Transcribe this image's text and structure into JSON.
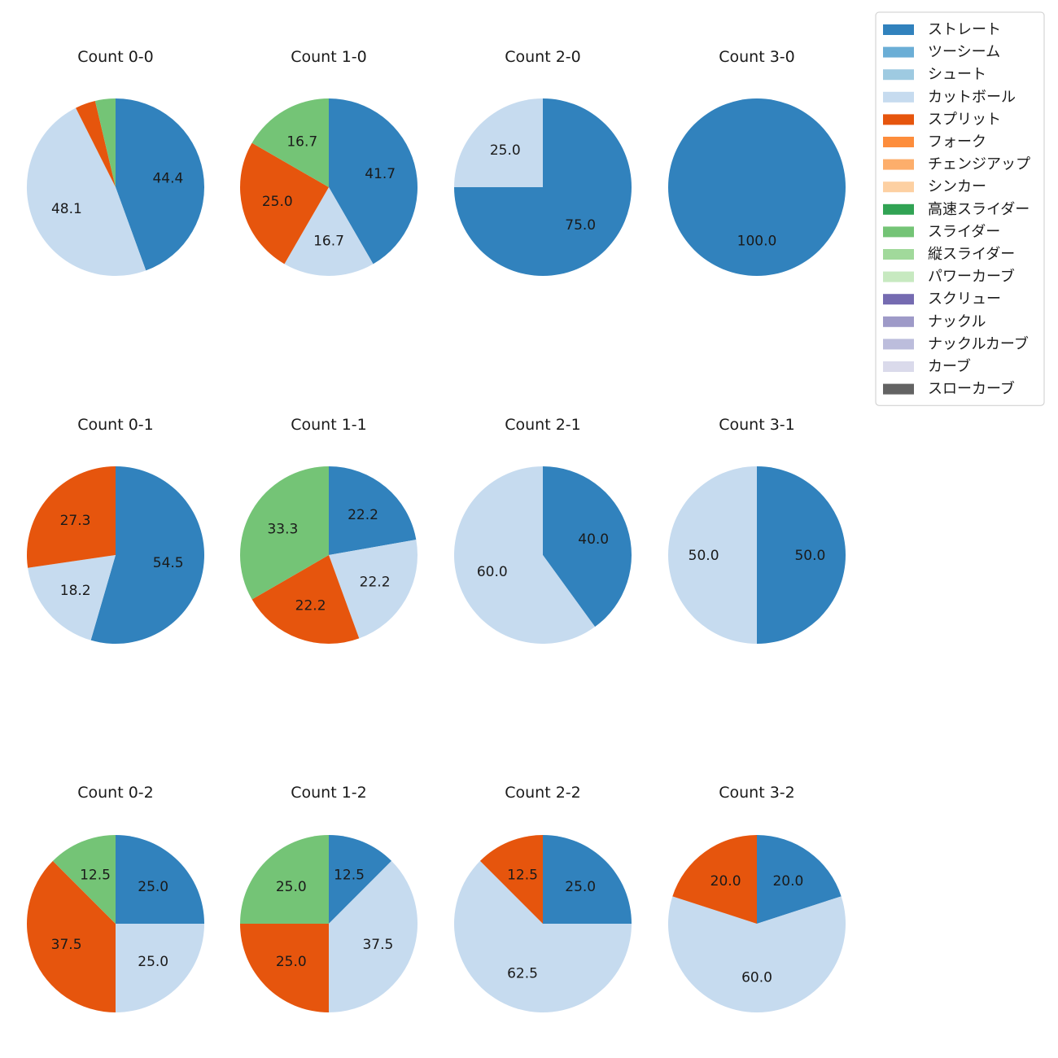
{
  "chart_data": {
    "type": "pie",
    "legend": {
      "placement": "top-right",
      "entries": [
        {
          "name": "ストレート",
          "color": "#3182bd"
        },
        {
          "name": "ツーシーム",
          "color": "#6baed6"
        },
        {
          "name": "シュート",
          "color": "#9ecae1"
        },
        {
          "name": "カットボール",
          "color": "#c6dbef"
        },
        {
          "name": "スプリット",
          "color": "#e6550d"
        },
        {
          "name": "フォーク",
          "color": "#fd8d3c"
        },
        {
          "name": "チェンジアップ",
          "color": "#fdae6b"
        },
        {
          "name": "シンカー",
          "color": "#fdd0a2"
        },
        {
          "name": "高速スライダー",
          "color": "#31a354"
        },
        {
          "name": "スライダー",
          "color": "#74c476"
        },
        {
          "name": "縦スライダー",
          "color": "#a1d99b"
        },
        {
          "name": "パワーカーブ",
          "color": "#c7e9c0"
        },
        {
          "name": "スクリュー",
          "color": "#756bb1"
        },
        {
          "name": "ナックル",
          "color": "#9e9ac8"
        },
        {
          "name": "ナックルカーブ",
          "color": "#bcbddc"
        },
        {
          "name": "カーブ",
          "color": "#dadaeb"
        },
        {
          "name": "スローカーブ",
          "color": "#636363"
        }
      ]
    },
    "pies": [
      {
        "title": "Count 0-0",
        "slices": [
          {
            "pitch": "ストレート",
            "value": 44.4,
            "label": "44.4"
          },
          {
            "pitch": "カットボール",
            "value": 48.1,
            "label": "48.1"
          },
          {
            "pitch": "スプリット",
            "value": 3.7,
            "label": ""
          },
          {
            "pitch": "スライダー",
            "value": 3.7,
            "label": ""
          }
        ]
      },
      {
        "title": "Count 1-0",
        "slices": [
          {
            "pitch": "ストレート",
            "value": 41.7,
            "label": "41.7"
          },
          {
            "pitch": "カットボール",
            "value": 16.7,
            "label": "16.7"
          },
          {
            "pitch": "スプリット",
            "value": 25.0,
            "label": "25.0"
          },
          {
            "pitch": "スライダー",
            "value": 16.7,
            "label": "16.7"
          }
        ]
      },
      {
        "title": "Count 2-0",
        "slices": [
          {
            "pitch": "ストレート",
            "value": 75.0,
            "label": "75.0"
          },
          {
            "pitch": "カットボール",
            "value": 25.0,
            "label": "25.0"
          }
        ]
      },
      {
        "title": "Count 3-0",
        "slices": [
          {
            "pitch": "ストレート",
            "value": 100.0,
            "label": "100.0"
          }
        ]
      },
      {
        "title": "Count 0-1",
        "slices": [
          {
            "pitch": "ストレート",
            "value": 54.5,
            "label": "54.5"
          },
          {
            "pitch": "カットボール",
            "value": 18.2,
            "label": "18.2"
          },
          {
            "pitch": "スプリット",
            "value": 27.3,
            "label": "27.3"
          }
        ]
      },
      {
        "title": "Count 1-1",
        "slices": [
          {
            "pitch": "ストレート",
            "value": 22.2,
            "label": "22.2"
          },
          {
            "pitch": "カットボール",
            "value": 22.2,
            "label": "22.2"
          },
          {
            "pitch": "スプリット",
            "value": 22.2,
            "label": "22.2"
          },
          {
            "pitch": "スライダー",
            "value": 33.3,
            "label": "33.3"
          }
        ]
      },
      {
        "title": "Count 2-1",
        "slices": [
          {
            "pitch": "ストレート",
            "value": 40.0,
            "label": "40.0"
          },
          {
            "pitch": "カットボール",
            "value": 60.0,
            "label": "60.0"
          }
        ]
      },
      {
        "title": "Count 3-1",
        "slices": [
          {
            "pitch": "ストレート",
            "value": 50.0,
            "label": "50.0"
          },
          {
            "pitch": "カットボール",
            "value": 50.0,
            "label": "50.0"
          }
        ]
      },
      {
        "title": "Count 0-2",
        "slices": [
          {
            "pitch": "ストレート",
            "value": 25.0,
            "label": "25.0"
          },
          {
            "pitch": "カットボール",
            "value": 25.0,
            "label": "25.0"
          },
          {
            "pitch": "スプリット",
            "value": 37.5,
            "label": "37.5"
          },
          {
            "pitch": "スライダー",
            "value": 12.5,
            "label": "12.5"
          }
        ]
      },
      {
        "title": "Count 1-2",
        "slices": [
          {
            "pitch": "ストレート",
            "value": 12.5,
            "label": "12.5"
          },
          {
            "pitch": "カットボール",
            "value": 37.5,
            "label": "37.5"
          },
          {
            "pitch": "スプリット",
            "value": 25.0,
            "label": "25.0"
          },
          {
            "pitch": "スライダー",
            "value": 25.0,
            "label": "25.0"
          }
        ]
      },
      {
        "title": "Count 2-2",
        "slices": [
          {
            "pitch": "ストレート",
            "value": 25.0,
            "label": "25.0"
          },
          {
            "pitch": "カットボール",
            "value": 62.5,
            "label": "62.5"
          },
          {
            "pitch": "スプリット",
            "value": 12.5,
            "label": "12.5"
          }
        ]
      },
      {
        "title": "Count 3-2",
        "slices": [
          {
            "pitch": "ストレート",
            "value": 20.0,
            "label": "20.0"
          },
          {
            "pitch": "カットボール",
            "value": 60.0,
            "label": "60.0"
          },
          {
            "pitch": "スプリット",
            "value": 20.0,
            "label": "20.0"
          }
        ]
      }
    ]
  }
}
